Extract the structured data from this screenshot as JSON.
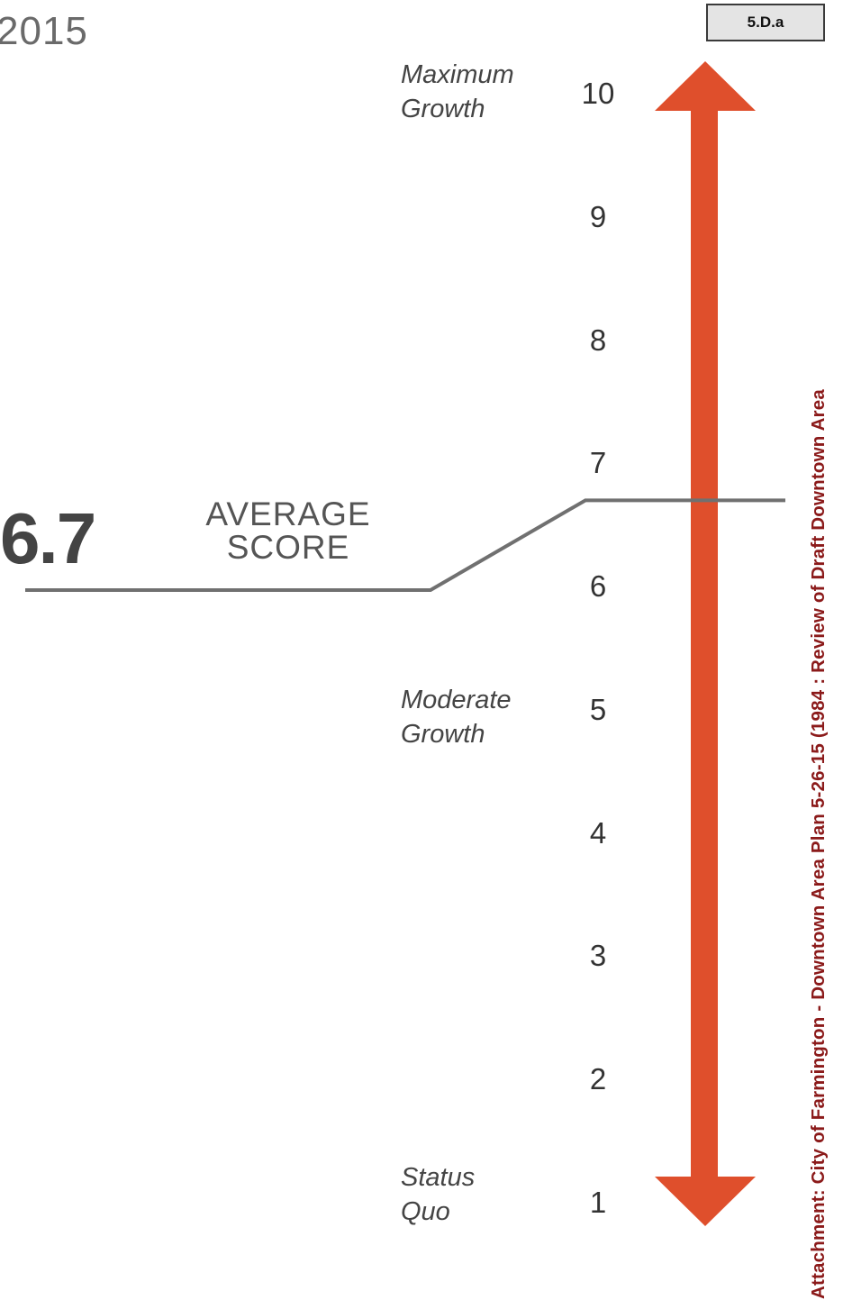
{
  "header": {
    "year": "2015",
    "tag": "5.D.a"
  },
  "scale": {
    "ticks": [
      "10",
      "9",
      "8",
      "7",
      "6",
      "5",
      "4",
      "3",
      "2",
      "1"
    ],
    "labels": {
      "max": [
        "Maximum",
        "Growth"
      ],
      "moderate": [
        "Moderate",
        "Growth"
      ],
      "status": [
        "Status",
        "Quo"
      ]
    },
    "min": 1,
    "max": 10
  },
  "average": {
    "value": "6.7",
    "value_num": 6.7,
    "label": [
      "AVERAGE",
      "SCORE"
    ]
  },
  "sidebar": {
    "text": "Attachment: City of Farmington - Downtown Area Plan 5-26-15  (1984 : Review of Draft Downtown Area"
  },
  "colors": {
    "arrow": "#df4f2c",
    "line": "#707070",
    "sidebar_text": "#8b1a1a"
  }
}
